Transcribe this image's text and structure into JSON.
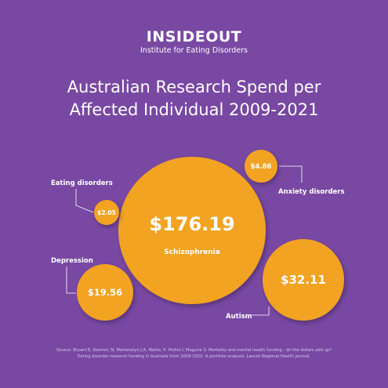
{
  "brand": {
    "logo_text": "INSIDEOUT",
    "logo_subtitle": "Institute for Eating Disorders"
  },
  "title_line1": "Australian Research Spend per",
  "title_line2": "Affected Individual 2009-2021",
  "colors": {
    "background": "#7848a3",
    "bubble": "#f2a322",
    "text": "#ffffff",
    "leader_line": "#ffffff"
  },
  "chart_data": {
    "type": "bubble",
    "title": "Australian Research Spend per Affected Individual 2009-2021",
    "unit": "$ per affected individual",
    "series": [
      {
        "label": "Schizophrenia",
        "value": 176.19,
        "value_label": "$176.19"
      },
      {
        "label": "Autism",
        "value": 32.11,
        "value_label": "$32.11"
      },
      {
        "label": "Depression",
        "value": 19.56,
        "value_label": "$19.56"
      },
      {
        "label": "Anxiety disorders",
        "value": 4.86,
        "value_label": "$4.86"
      },
      {
        "label": "Eating disorders",
        "value": 2.05,
        "value_label": "$2.05"
      }
    ]
  },
  "source_line1": "Source: Bryant E, Koemel, N, Martenstyn J.A, Marks, P, Hickie I, Maguire S. Mortality and mental health funding - do the dollars add up?",
  "source_line2": "Eating disorder research funding in Australia from 2009-2021: A portfolio analysis. Lancet Regional Health journal."
}
